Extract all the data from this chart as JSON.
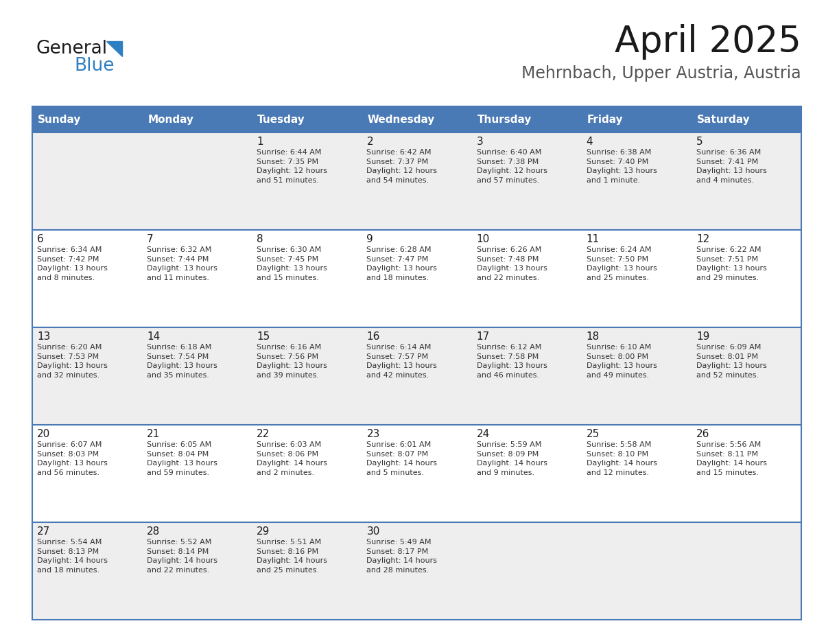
{
  "title": "April 2025",
  "subtitle": "Mehrnbach, Upper Austria, Austria",
  "header_color": "#4a7ab5",
  "header_text_color": "#ffffff",
  "grid_line_color": "#4a7ab5",
  "day_names": [
    "Sunday",
    "Monday",
    "Tuesday",
    "Wednesday",
    "Thursday",
    "Friday",
    "Saturday"
  ],
  "cell_bg_even": "#eeeeee",
  "cell_bg_odd": "#ffffff",
  "weeks": [
    [
      {
        "day": "",
        "info": ""
      },
      {
        "day": "",
        "info": ""
      },
      {
        "day": "1",
        "info": "Sunrise: 6:44 AM\nSunset: 7:35 PM\nDaylight: 12 hours\nand 51 minutes."
      },
      {
        "day": "2",
        "info": "Sunrise: 6:42 AM\nSunset: 7:37 PM\nDaylight: 12 hours\nand 54 minutes."
      },
      {
        "day": "3",
        "info": "Sunrise: 6:40 AM\nSunset: 7:38 PM\nDaylight: 12 hours\nand 57 minutes."
      },
      {
        "day": "4",
        "info": "Sunrise: 6:38 AM\nSunset: 7:40 PM\nDaylight: 13 hours\nand 1 minute."
      },
      {
        "day": "5",
        "info": "Sunrise: 6:36 AM\nSunset: 7:41 PM\nDaylight: 13 hours\nand 4 minutes."
      }
    ],
    [
      {
        "day": "6",
        "info": "Sunrise: 6:34 AM\nSunset: 7:42 PM\nDaylight: 13 hours\nand 8 minutes."
      },
      {
        "day": "7",
        "info": "Sunrise: 6:32 AM\nSunset: 7:44 PM\nDaylight: 13 hours\nand 11 minutes."
      },
      {
        "day": "8",
        "info": "Sunrise: 6:30 AM\nSunset: 7:45 PM\nDaylight: 13 hours\nand 15 minutes."
      },
      {
        "day": "9",
        "info": "Sunrise: 6:28 AM\nSunset: 7:47 PM\nDaylight: 13 hours\nand 18 minutes."
      },
      {
        "day": "10",
        "info": "Sunrise: 6:26 AM\nSunset: 7:48 PM\nDaylight: 13 hours\nand 22 minutes."
      },
      {
        "day": "11",
        "info": "Sunrise: 6:24 AM\nSunset: 7:50 PM\nDaylight: 13 hours\nand 25 minutes."
      },
      {
        "day": "12",
        "info": "Sunrise: 6:22 AM\nSunset: 7:51 PM\nDaylight: 13 hours\nand 29 minutes."
      }
    ],
    [
      {
        "day": "13",
        "info": "Sunrise: 6:20 AM\nSunset: 7:53 PM\nDaylight: 13 hours\nand 32 minutes."
      },
      {
        "day": "14",
        "info": "Sunrise: 6:18 AM\nSunset: 7:54 PM\nDaylight: 13 hours\nand 35 minutes."
      },
      {
        "day": "15",
        "info": "Sunrise: 6:16 AM\nSunset: 7:56 PM\nDaylight: 13 hours\nand 39 minutes."
      },
      {
        "day": "16",
        "info": "Sunrise: 6:14 AM\nSunset: 7:57 PM\nDaylight: 13 hours\nand 42 minutes."
      },
      {
        "day": "17",
        "info": "Sunrise: 6:12 AM\nSunset: 7:58 PM\nDaylight: 13 hours\nand 46 minutes."
      },
      {
        "day": "18",
        "info": "Sunrise: 6:10 AM\nSunset: 8:00 PM\nDaylight: 13 hours\nand 49 minutes."
      },
      {
        "day": "19",
        "info": "Sunrise: 6:09 AM\nSunset: 8:01 PM\nDaylight: 13 hours\nand 52 minutes."
      }
    ],
    [
      {
        "day": "20",
        "info": "Sunrise: 6:07 AM\nSunset: 8:03 PM\nDaylight: 13 hours\nand 56 minutes."
      },
      {
        "day": "21",
        "info": "Sunrise: 6:05 AM\nSunset: 8:04 PM\nDaylight: 13 hours\nand 59 minutes."
      },
      {
        "day": "22",
        "info": "Sunrise: 6:03 AM\nSunset: 8:06 PM\nDaylight: 14 hours\nand 2 minutes."
      },
      {
        "day": "23",
        "info": "Sunrise: 6:01 AM\nSunset: 8:07 PM\nDaylight: 14 hours\nand 5 minutes."
      },
      {
        "day": "24",
        "info": "Sunrise: 5:59 AM\nSunset: 8:09 PM\nDaylight: 14 hours\nand 9 minutes."
      },
      {
        "day": "25",
        "info": "Sunrise: 5:58 AM\nSunset: 8:10 PM\nDaylight: 14 hours\nand 12 minutes."
      },
      {
        "day": "26",
        "info": "Sunrise: 5:56 AM\nSunset: 8:11 PM\nDaylight: 14 hours\nand 15 minutes."
      }
    ],
    [
      {
        "day": "27",
        "info": "Sunrise: 5:54 AM\nSunset: 8:13 PM\nDaylight: 14 hours\nand 18 minutes."
      },
      {
        "day": "28",
        "info": "Sunrise: 5:52 AM\nSunset: 8:14 PM\nDaylight: 14 hours\nand 22 minutes."
      },
      {
        "day": "29",
        "info": "Sunrise: 5:51 AM\nSunset: 8:16 PM\nDaylight: 14 hours\nand 25 minutes."
      },
      {
        "day": "30",
        "info": "Sunrise: 5:49 AM\nSunset: 8:17 PM\nDaylight: 14 hours\nand 28 minutes."
      },
      {
        "day": "",
        "info": ""
      },
      {
        "day": "",
        "info": ""
      },
      {
        "day": "",
        "info": ""
      }
    ]
  ],
  "logo_text_general": "General",
  "logo_text_blue": "Blue",
  "logo_color_general": "#1a1a1a",
  "logo_color_blue": "#2e7fc2",
  "logo_triangle_color": "#2e7fc2",
  "title_fontsize": 38,
  "subtitle_fontsize": 17,
  "header_fontsize": 11,
  "day_num_fontsize": 11,
  "info_fontsize": 8
}
